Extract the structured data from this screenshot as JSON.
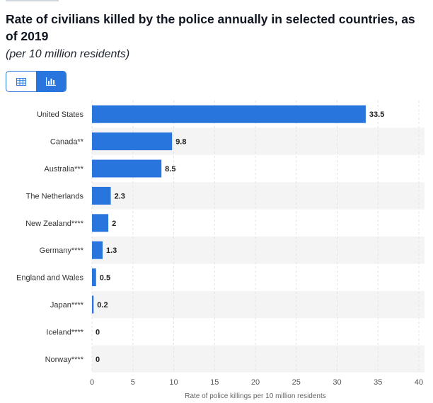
{
  "header": {
    "title": "Rate of civilians killed by the police annually in selected countries, as of 2019",
    "subtitle": "(per 10 million residents)"
  },
  "view_toggle": {
    "options": [
      {
        "icon": "table-icon",
        "active": false
      },
      {
        "icon": "bar-chart-icon",
        "active": true
      }
    ]
  },
  "colors": {
    "bar": "#2876dd",
    "band": "#f4f4f4",
    "grid": "#e3e3e3"
  },
  "chart_data": {
    "type": "bar",
    "orientation": "horizontal",
    "categories": [
      "United States",
      "Canada**",
      "Australia***",
      "The Netherlands",
      "New Zealand****",
      "Germany****",
      "England and Wales",
      "Japan****",
      "Iceland****",
      "Norway****"
    ],
    "values": [
      33.5,
      9.8,
      8.5,
      2.3,
      2,
      1.3,
      0.5,
      0.2,
      0,
      0
    ],
    "value_labels": [
      "33.5",
      "9.8",
      "8.5",
      "2.3",
      "2",
      "1.3",
      "0.5",
      "0.2",
      "0",
      "0"
    ],
    "xlabel": "Rate of police killings per 10 million residents",
    "ylabel": "",
    "xlim": [
      0,
      40
    ],
    "xticks": [
      0,
      5,
      10,
      15,
      20,
      25,
      30,
      35,
      40
    ],
    "grid": true
  }
}
